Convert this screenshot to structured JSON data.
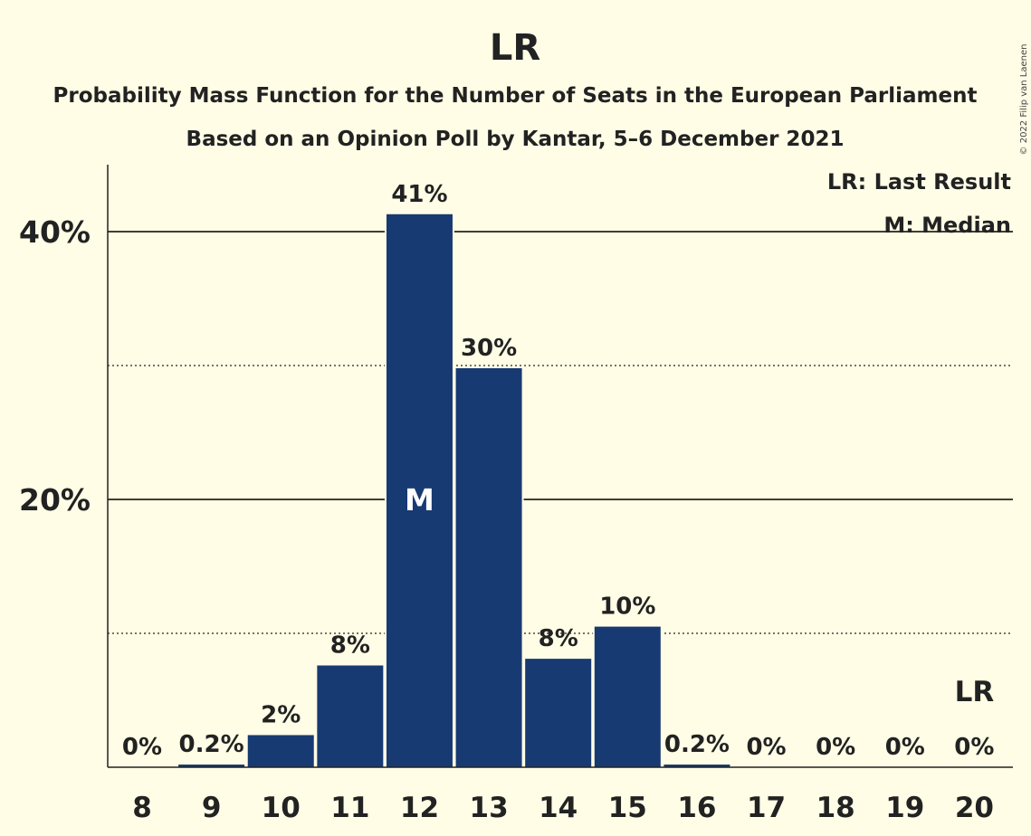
{
  "colors": {
    "background": "#FFFDE6",
    "bar": "#173A73",
    "text": "#222222",
    "median_text": "#FFFFFF"
  },
  "chart_data": {
    "type": "bar",
    "title": "LR",
    "subtitles": [
      "Probability Mass Function for the Number of Seats in the European Parliament",
      "Based on an Opinion Poll by Kantar, 5–6 December 2021"
    ],
    "categories": [
      "8",
      "9",
      "10",
      "11",
      "12",
      "13",
      "14",
      "15",
      "16",
      "17",
      "18",
      "19",
      "20"
    ],
    "values": [
      0,
      0.2,
      2.4,
      7.6,
      41.3,
      29.8,
      8.1,
      10.5,
      0.2,
      0,
      0,
      0,
      0
    ],
    "value_labels": [
      "0%",
      "0.2%",
      "2%",
      "8%",
      "41%",
      "30%",
      "8%",
      "10%",
      "0.2%",
      "0%",
      "0%",
      "0%",
      "0%"
    ],
    "ylim": [
      0,
      45
    ],
    "yticks": [
      {
        "value": 20,
        "label": "20%",
        "style": "solid"
      },
      {
        "value": 40,
        "label": "40%",
        "style": "solid"
      }
    ],
    "minor_gridlines": [
      10,
      30
    ],
    "median_category": "12",
    "median_marker": "M",
    "last_result_category": "20",
    "last_result_marker": "LR",
    "legend": [
      "LR: Last Result",
      "M: Median"
    ],
    "legend_position": "top-right",
    "copyright": "© 2022 Filip van Laenen"
  }
}
